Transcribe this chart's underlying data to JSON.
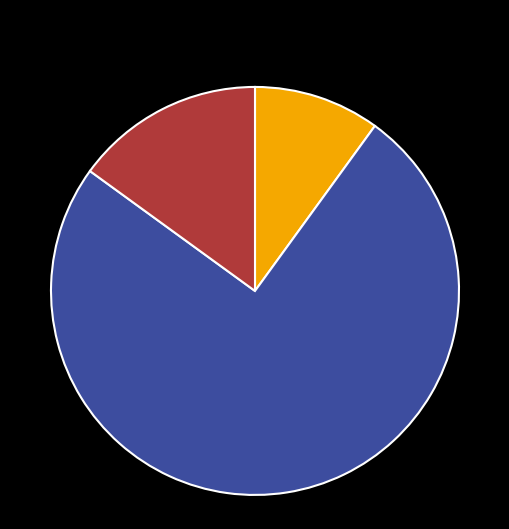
{
  "slices": [
    10,
    75,
    15
  ],
  "colors": [
    "#F5A800",
    "#3D4D9F",
    "#B03A3A"
  ],
  "background_color": "#000000",
  "wedge_edge_color": "#ffffff",
  "wedge_linewidth": 1.5,
  "startangle": 90,
  "counterclock": false,
  "legend_colors": [
    "#F5A800",
    "#3D4D9F",
    "#B03A3A"
  ],
  "figsize": [
    5.1,
    5.29
  ],
  "dpi": 100
}
